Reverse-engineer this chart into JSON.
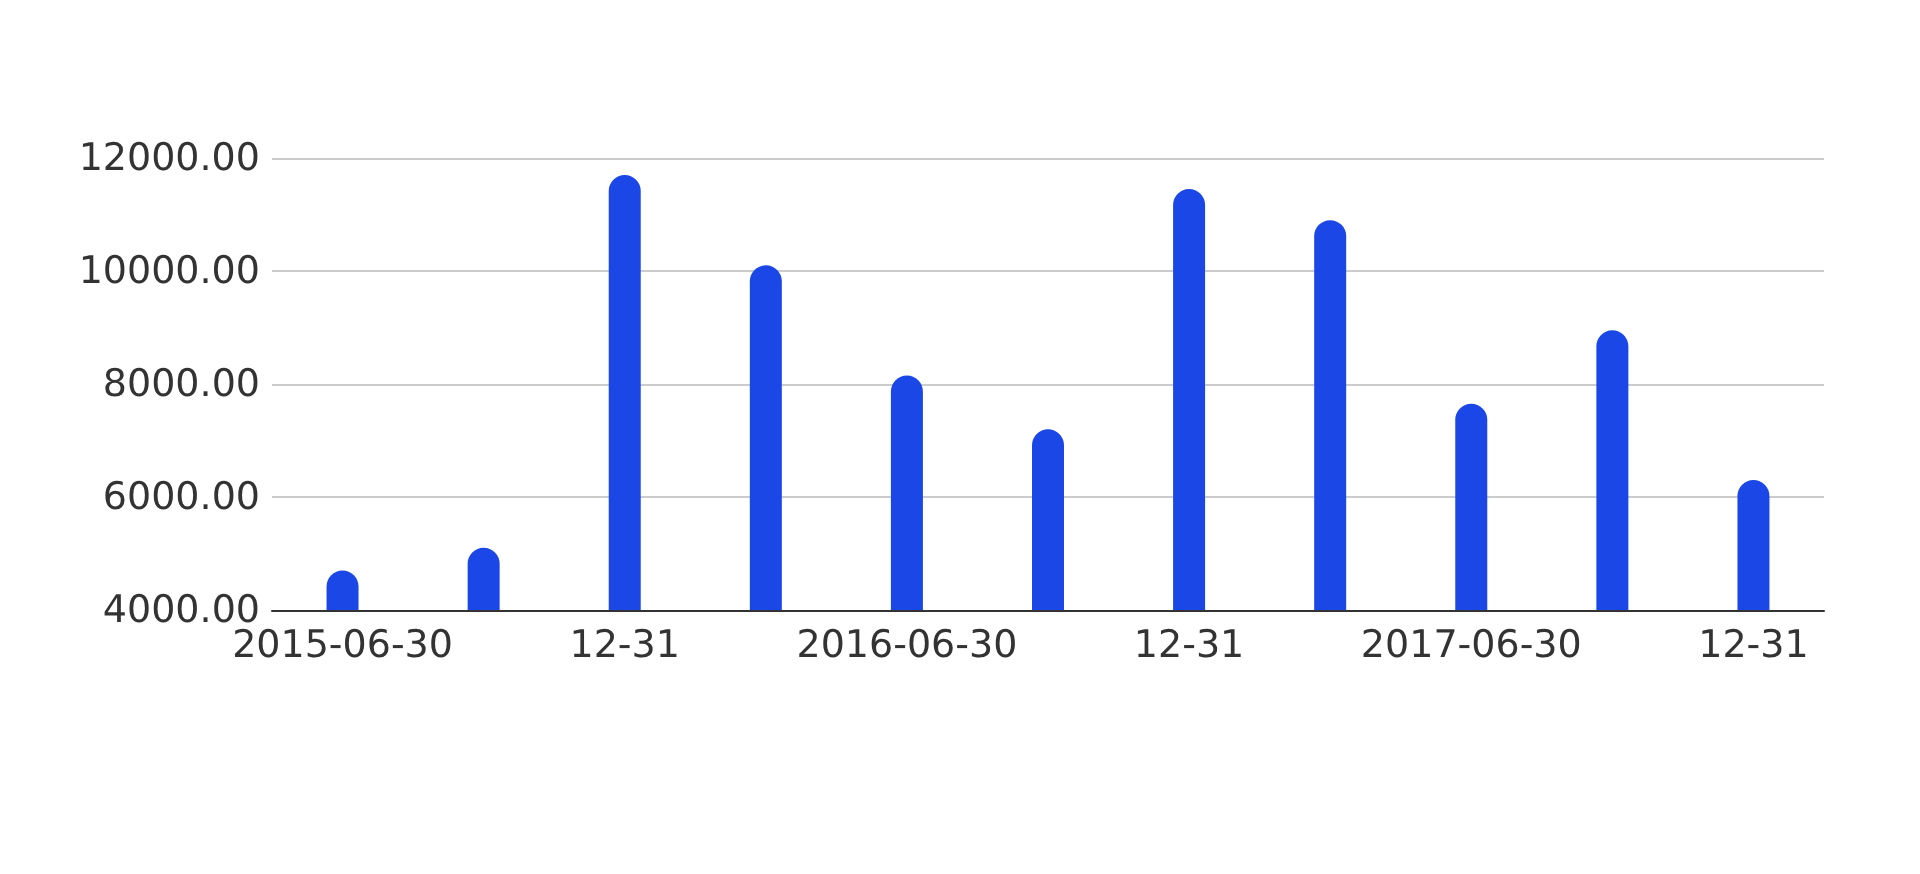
{
  "chart_data": {
    "type": "bar",
    "categories": [
      "2015-06-30",
      null,
      "12-31",
      null,
      "2016-06-30",
      null,
      "12-31",
      null,
      "2017-06-30",
      null,
      "12-31"
    ],
    "values": [
      4700,
      5100,
      11700,
      10100,
      8150,
      7200,
      11450,
      10900,
      7650,
      8950,
      6300
    ],
    "color": "#1a47e5",
    "ylim": [
      4000,
      12000
    ],
    "yticks": [
      {
        "value": 4000,
        "label": "4000.00"
      },
      {
        "value": 6000,
        "label": "6000.00"
      },
      {
        "value": 8000,
        "label": "8000.00"
      },
      {
        "value": 10000,
        "label": "10000.00"
      },
      {
        "value": 12000,
        "label": "12000.00"
      }
    ],
    "grid": "y"
  }
}
